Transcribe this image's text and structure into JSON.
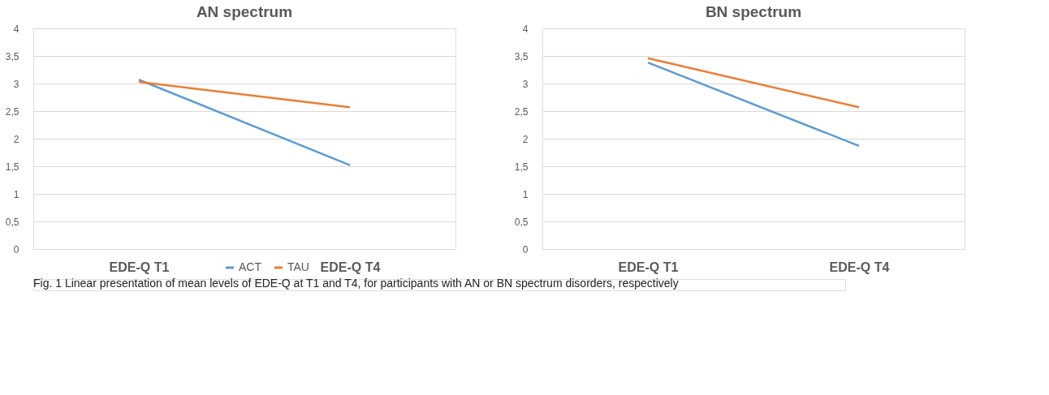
{
  "chart_data": [
    {
      "type": "line",
      "title": "AN spectrum",
      "categories": [
        "EDE-Q T1",
        "EDE-Q T4"
      ],
      "series": [
        {
          "name": "ACT",
          "color": "#5b9bd5",
          "values": [
            3.07,
            1.52
          ]
        },
        {
          "name": "TAU",
          "color": "#ed7d31",
          "values": [
            3.03,
            2.57
          ]
        }
      ],
      "ylim": [
        0,
        4
      ],
      "yticks": [
        0,
        {
          "value": 0.5,
          "label": "0,5"
        },
        1,
        {
          "value": 1.5,
          "label": "1,5"
        },
        2,
        {
          "value": 2.5,
          "label": "2,5"
        },
        3,
        {
          "value": 3.5,
          "label": "3,5"
        },
        4
      ],
      "grid": "y",
      "legend": "bottom",
      "line_style": "solid",
      "marker": "none",
      "annotations": [
        "Fig. 1  Linear presentation of mean levels of EDE-Q at T1 and T4, for participants with AN or BN spectrum disorders, respectively"
      ]
    },
    {
      "type": "line",
      "title": "BN spectrum",
      "categories": [
        "EDE-Q T1",
        "EDE-Q T4"
      ],
      "series": [
        {
          "name": "ACT",
          "color": "#5b9bd5",
          "values": [
            3.38,
            1.87
          ]
        },
        {
          "name": "TAU",
          "color": "#ed7d31",
          "values": [
            3.46,
            2.57
          ]
        }
      ],
      "ylim": [
        0,
        4
      ],
      "yticks": [
        0,
        {
          "value": 0.5,
          "label": "0,5"
        },
        1,
        {
          "value": 1.5,
          "label": "1,5"
        },
        2,
        {
          "value": 2.5,
          "label": "2,5"
        },
        3,
        {
          "value": 3.5,
          "label": "3,5"
        },
        4
      ],
      "grid": "y",
      "legend": "bottom",
      "line_style": "solid",
      "marker": "none"
    }
  ]
}
